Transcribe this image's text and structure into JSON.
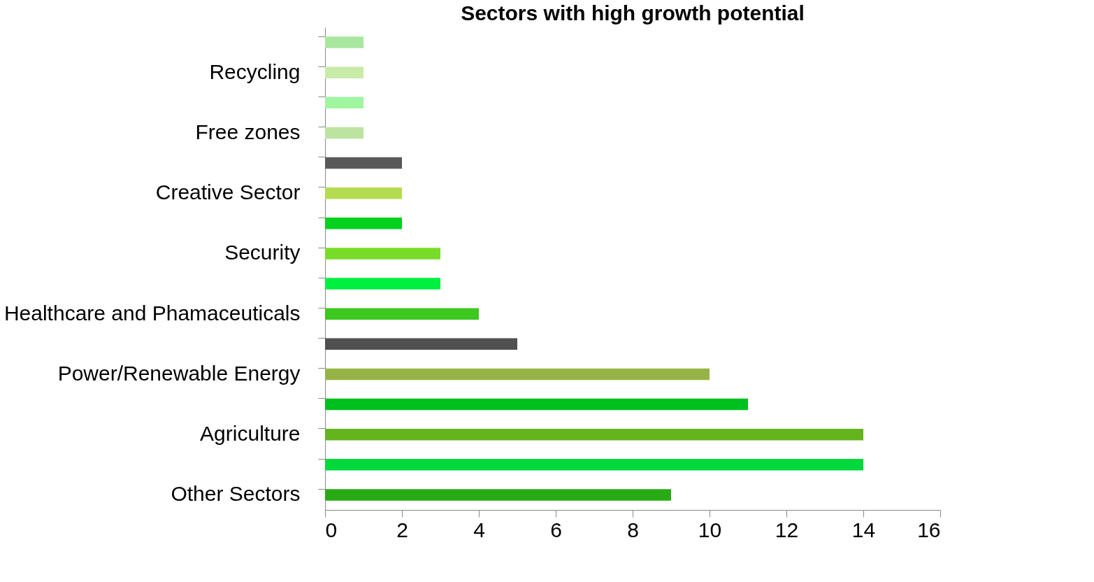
{
  "chart_data": {
    "type": "bar",
    "orientation": "horizontal",
    "title": "Sectors with high growth potential",
    "categories": [
      null,
      "Recycling",
      null,
      "Free zones",
      null,
      "Creative Sector",
      null,
      "Security",
      null,
      "Healthcare and Phamaceuticals",
      null,
      "Power/Renewable Energy",
      null,
      "Agriculture",
      null,
      "Other Sectors"
    ],
    "values": [
      1,
      1,
      1,
      1,
      2,
      2,
      2,
      3,
      3,
      4,
      5,
      10,
      11,
      14,
      14,
      9
    ],
    "colors": [
      "#a8e6a0",
      "#c8eba8",
      "#a0f5a0",
      "#bce3a0",
      "#595959",
      "#b4dc50",
      "#00d21e",
      "#78dc28",
      "#00f040",
      "#3cc81e",
      "#505050",
      "#96b446",
      "#00c01e",
      "#64b41e",
      "#00d83c",
      "#28aa14"
    ],
    "xlim": [
      0,
      16
    ],
    "xticks": [
      0,
      2,
      4,
      6,
      8,
      10,
      12,
      14,
      16
    ],
    "grid": false
  }
}
